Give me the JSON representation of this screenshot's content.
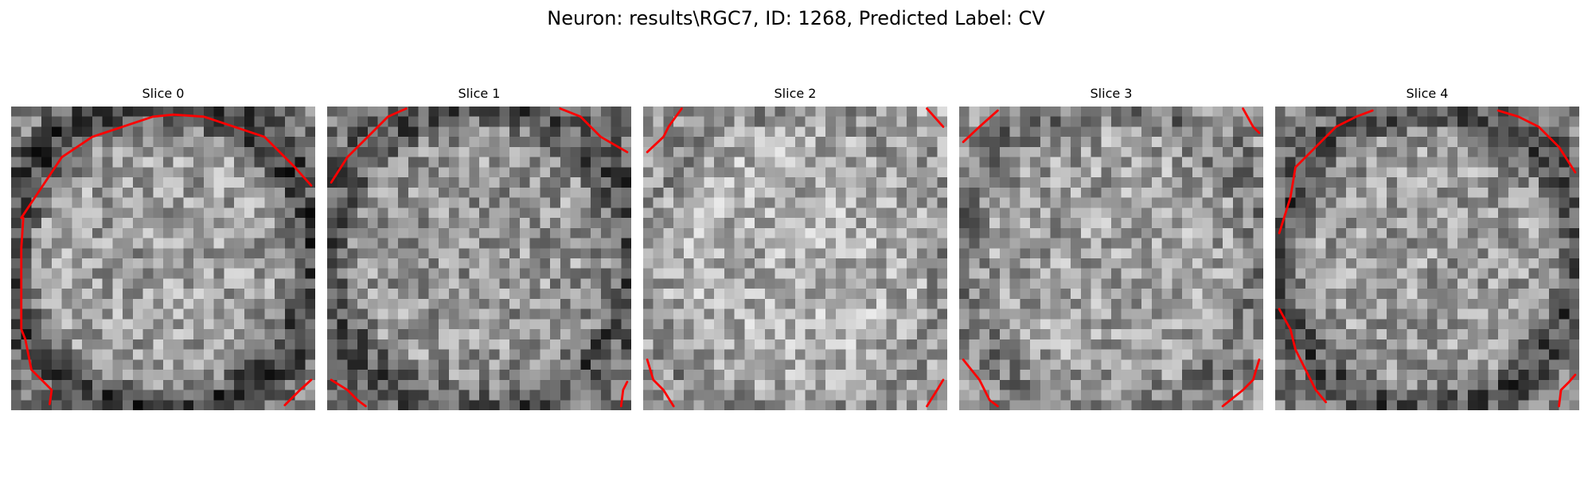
{
  "figure": {
    "title": "Neuron: results\\RGC7, ID: 1268, Predicted Label: CV"
  },
  "colors": {
    "contour": "#ff0000",
    "background": "#ffffff",
    "text": "#000000"
  },
  "image": {
    "grid": 30,
    "colormap": "gray"
  },
  "slices": [
    {
      "title": "Slice 0",
      "seed": 11,
      "mean": 158,
      "ring_strength": 1.0,
      "contours": [
        [
          [
            1.0,
            11
          ],
          [
            3,
            8
          ],
          [
            5,
            5
          ],
          [
            8,
            3
          ],
          [
            11,
            2
          ],
          [
            14,
            1
          ],
          [
            16,
            0.8
          ],
          [
            19,
            1
          ],
          [
            22,
            2
          ],
          [
            25,
            3
          ],
          [
            28,
            6
          ],
          [
            29.6,
            7.8
          ]
        ],
        [
          [
            1.2,
            11
          ],
          [
            1,
            14
          ],
          [
            1,
            18
          ],
          [
            1,
            22
          ],
          [
            1.4,
            23
          ],
          [
            2,
            26
          ],
          [
            3,
            27
          ],
          [
            4,
            28
          ],
          [
            3.8,
            29.4
          ]
        ],
        [
          [
            27,
            29.5
          ],
          [
            28.5,
            28
          ],
          [
            29.6,
            27
          ]
        ]
      ]
    },
    {
      "title": "Slice 1",
      "seed": 23,
      "mean": 150,
      "ring_strength": 0.75,
      "contours": [
        [
          [
            0.4,
            7.5
          ],
          [
            2,
            5
          ],
          [
            4,
            3
          ],
          [
            6,
            1
          ],
          [
            7.8,
            0.2
          ]
        ],
        [
          [
            23,
            0.2
          ],
          [
            25,
            1
          ],
          [
            27,
            3
          ],
          [
            29.6,
            4.5
          ]
        ],
        [
          [
            0.4,
            27
          ],
          [
            2,
            28
          ],
          [
            3,
            29
          ],
          [
            3.8,
            29.6
          ]
        ],
        [
          [
            29,
            29.6
          ],
          [
            29.2,
            28
          ],
          [
            29.6,
            27.2
          ]
        ]
      ]
    },
    {
      "title": "Slice 2",
      "seed": 37,
      "mean": 175,
      "ring_strength": 0.35,
      "contours": [
        [
          [
            0.4,
            4.5
          ],
          [
            2,
            3
          ],
          [
            2.5,
            2
          ],
          [
            3.8,
            0.2
          ]
        ],
        [
          [
            28,
            0.2
          ],
          [
            29.6,
            2
          ]
        ],
        [
          [
            0.4,
            25
          ],
          [
            1,
            27
          ],
          [
            2,
            28
          ],
          [
            3,
            29.6
          ]
        ],
        [
          [
            28,
            29.6
          ],
          [
            29,
            28
          ],
          [
            29.6,
            27
          ]
        ]
      ]
    },
    {
      "title": "Slice 3",
      "seed": 51,
      "mean": 160,
      "ring_strength": 0.45,
      "contours": [
        [
          [
            0.4,
            3.5
          ],
          [
            2,
            2
          ],
          [
            3.8,
            0.4
          ]
        ],
        [
          [
            28,
            0.2
          ],
          [
            29,
            2
          ],
          [
            29.6,
            2.6
          ]
        ],
        [
          [
            0.4,
            25
          ],
          [
            2,
            27
          ],
          [
            3,
            29
          ],
          [
            3.8,
            29.6
          ]
        ],
        [
          [
            26,
            29.6
          ],
          [
            28,
            28
          ],
          [
            29,
            27
          ],
          [
            29.6,
            25
          ]
        ]
      ]
    },
    {
      "title": "Slice 4",
      "seed": 73,
      "mean": 155,
      "ring_strength": 0.85,
      "contours": [
        [
          [
            0.4,
            12.5
          ],
          [
            1.5,
            9
          ],
          [
            2,
            6
          ],
          [
            4,
            4
          ],
          [
            6,
            2
          ],
          [
            8,
            1
          ],
          [
            9.6,
            0.4
          ]
        ],
        [
          [
            22,
            0.4
          ],
          [
            24,
            1
          ],
          [
            26,
            2
          ],
          [
            28,
            4
          ],
          [
            29.6,
            6.5
          ]
        ],
        [
          [
            0.4,
            20
          ],
          [
            1.5,
            22
          ],
          [
            2,
            24
          ],
          [
            3,
            26
          ],
          [
            4,
            28
          ],
          [
            5,
            29.2
          ]
        ],
        [
          [
            28,
            29.6
          ],
          [
            28.2,
            28
          ],
          [
            29,
            27.2
          ],
          [
            29.6,
            26.5
          ]
        ]
      ]
    }
  ]
}
